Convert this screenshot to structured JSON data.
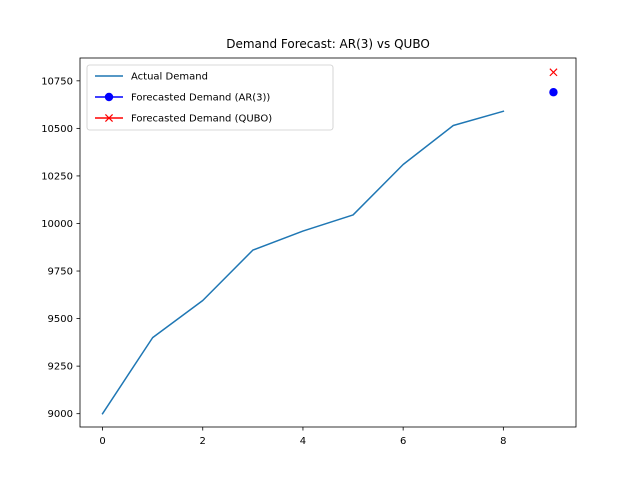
{
  "chart_data": {
    "type": "line",
    "title": "Demand Forecast: AR(3) vs QUBO",
    "xlabel": "",
    "ylabel": "",
    "xlim": [
      -0.45,
      9.45
    ],
    "ylim": [
      8930,
      10870
    ],
    "xticks": [
      0,
      2,
      4,
      6,
      8
    ],
    "yticks": [
      9000,
      9250,
      9500,
      9750,
      10000,
      10250,
      10500,
      10750
    ],
    "grid": false,
    "legend_position": "upper left",
    "series": [
      {
        "name": "Actual Demand",
        "kind": "line",
        "color": "#1f77b4",
        "x": [
          0,
          1,
          2,
          3,
          4,
          5,
          6,
          7,
          8
        ],
        "y": [
          9000,
          9400,
          9595,
          9860,
          9960,
          10045,
          10310,
          10515,
          10590
        ]
      },
      {
        "name": "Forecasted Demand (AR(3))",
        "kind": "marker-circle",
        "color": "#0000ff",
        "x": [
          9
        ],
        "y": [
          10690
        ]
      },
      {
        "name": "Forecasted Demand (QUBO)",
        "kind": "marker-x",
        "color": "#ff0000",
        "x": [
          9
        ],
        "y": [
          10795
        ]
      }
    ]
  }
}
